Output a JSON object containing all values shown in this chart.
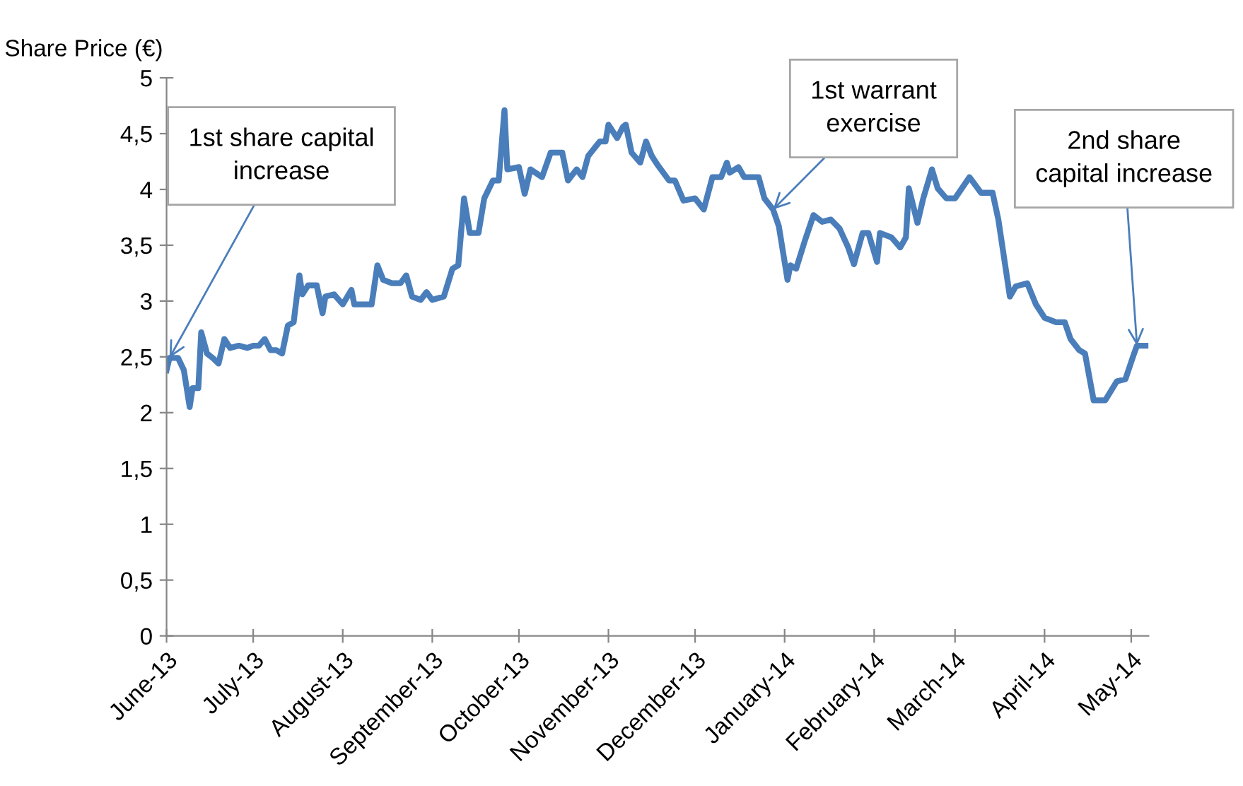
{
  "chart_data": {
    "type": "line",
    "ylabel": "Share Price (€)",
    "x": [
      "2013-06-01",
      "2013-06-02",
      "2013-06-05",
      "2013-06-07",
      "2013-06-09",
      "2013-06-10",
      "2013-06-12",
      "2013-06-13",
      "2013-06-15",
      "2013-06-17",
      "2013-06-19",
      "2013-06-21",
      "2013-06-23",
      "2013-06-26",
      "2013-06-29",
      "2013-07-01",
      "2013-07-03",
      "2013-07-05",
      "2013-07-07",
      "2013-07-09",
      "2013-07-11",
      "2013-07-13",
      "2013-07-15",
      "2013-07-17",
      "2013-07-18",
      "2013-07-20",
      "2013-07-23",
      "2013-07-25",
      "2013-07-26",
      "2013-07-29",
      "2013-08-01",
      "2013-08-04",
      "2013-08-05",
      "2013-08-08",
      "2013-08-11",
      "2013-08-13",
      "2013-08-15",
      "2013-08-18",
      "2013-08-21",
      "2013-08-23",
      "2013-08-25",
      "2013-08-28",
      "2013-08-30",
      "2013-09-01",
      "2013-09-05",
      "2013-09-08",
      "2013-09-10",
      "2013-09-12",
      "2013-09-14",
      "2013-09-17",
      "2013-09-19",
      "2013-09-22",
      "2013-09-24",
      "2013-09-26",
      "2013-09-27",
      "2013-10-01",
      "2013-10-03",
      "2013-10-05",
      "2013-10-09",
      "2013-10-12",
      "2013-10-16",
      "2013-10-18",
      "2013-10-21",
      "2013-10-23",
      "2013-10-25",
      "2013-10-29",
      "2013-10-31",
      "2013-11-01",
      "2013-11-04",
      "2013-11-06",
      "2013-11-07",
      "2013-11-09",
      "2013-11-12",
      "2013-11-14",
      "2013-11-16",
      "2013-11-18",
      "2013-11-22",
      "2013-11-24",
      "2013-11-27",
      "2013-12-01",
      "2013-12-04",
      "2013-12-07",
      "2013-12-10",
      "2013-12-12",
      "2013-12-13",
      "2013-12-16",
      "2013-12-18",
      "2013-12-23",
      "2013-12-25",
      "2013-12-28",
      "2013-12-30",
      "2014-01-02",
      "2014-01-03",
      "2014-01-05",
      "2014-01-08",
      "2014-01-11",
      "2014-01-14",
      "2014-01-17",
      "2014-01-20",
      "2014-01-23",
      "2014-01-25",
      "2014-01-28",
      "2014-01-30",
      "2014-02-02",
      "2014-02-03",
      "2014-02-07",
      "2014-02-10",
      "2014-02-12",
      "2014-02-13",
      "2014-02-16",
      "2014-02-18",
      "2014-02-21",
      "2014-02-23",
      "2014-02-26",
      "2014-03-01",
      "2014-03-06",
      "2014-03-10",
      "2014-03-14",
      "2014-03-16",
      "2014-03-20",
      "2014-03-22",
      "2014-03-26",
      "2014-03-29",
      "2014-04-01",
      "2014-04-05",
      "2014-04-08",
      "2014-04-10",
      "2014-04-13",
      "2014-04-15",
      "2014-04-18",
      "2014-04-22",
      "2014-04-26",
      "2014-04-29",
      "2014-05-02",
      "2014-05-03",
      "2014-05-06"
    ],
    "series": [
      {
        "color": "#4a7ebb",
        "values": [
          2.38,
          2.49,
          2.49,
          2.38,
          2.05,
          2.22,
          2.22,
          2.72,
          2.53,
          2.49,
          2.44,
          2.66,
          2.58,
          2.6,
          2.58,
          2.6,
          2.6,
          2.66,
          2.56,
          2.56,
          2.53,
          2.78,
          2.81,
          3.23,
          3.06,
          3.14,
          3.14,
          2.89,
          3.04,
          3.06,
          2.97,
          3.1,
          2.97,
          2.97,
          2.97,
          3.32,
          3.19,
          3.16,
          3.16,
          3.23,
          3.04,
          3.01,
          3.08,
          3.01,
          3.04,
          3.29,
          3.32,
          3.92,
          3.61,
          3.61,
          3.92,
          4.08,
          4.08,
          4.71,
          4.18,
          4.2,
          3.96,
          4.18,
          4.11,
          4.33,
          4.33,
          4.08,
          4.18,
          4.11,
          4.3,
          4.43,
          4.43,
          4.58,
          4.46,
          4.56,
          4.58,
          4.33,
          4.24,
          4.43,
          4.3,
          4.22,
          4.08,
          4.08,
          3.9,
          3.92,
          3.82,
          4.11,
          4.11,
          4.24,
          4.15,
          4.2,
          4.11,
          4.11,
          3.92,
          3.82,
          3.67,
          3.19,
          3.32,
          3.29,
          3.54,
          3.77,
          3.71,
          3.73,
          3.65,
          3.48,
          3.33,
          3.61,
          3.61,
          3.35,
          3.61,
          3.57,
          3.48,
          3.57,
          4.01,
          3.7,
          3.92,
          4.18,
          4.01,
          3.92,
          3.92,
          4.11,
          3.97,
          3.97,
          3.73,
          3.04,
          3.13,
          3.16,
          2.97,
          2.85,
          2.81,
          2.81,
          2.66,
          2.56,
          2.53,
          2.11,
          2.11,
          2.28,
          2.3,
          2.53,
          2.6,
          2.6
        ]
      }
    ],
    "xlim": [
      "2013-06-01",
      "2014-05-07"
    ],
    "xticks": [
      {
        "value": "2013-06-01",
        "label": "June-13"
      },
      {
        "value": "2013-07-01",
        "label": "July-13"
      },
      {
        "value": "2013-08-01",
        "label": "August-13"
      },
      {
        "value": "2013-09-01",
        "label": "September-13"
      },
      {
        "value": "2013-10-01",
        "label": "October-13"
      },
      {
        "value": "2013-11-01",
        "label": "November-13"
      },
      {
        "value": "2013-12-01",
        "label": "December-13"
      },
      {
        "value": "2014-01-01",
        "label": "January-14"
      },
      {
        "value": "2014-02-01",
        "label": "February-14"
      },
      {
        "value": "2014-03-01",
        "label": "March-14"
      },
      {
        "value": "2014-04-01",
        "label": "April-14"
      },
      {
        "value": "2014-05-01",
        "label": "May-14"
      }
    ],
    "ylim": [
      0,
      5
    ],
    "yticks": [
      0,
      {
        "value": 0.5,
        "label": "0,5"
      },
      1,
      {
        "value": 1.5,
        "label": "1,5"
      },
      2,
      {
        "value": 2.5,
        "label": "2,5"
      },
      3,
      {
        "value": 3.5,
        "label": "3,5"
      },
      4,
      {
        "value": 4.5,
        "label": "4,5"
      },
      5
    ],
    "grid": false,
    "legend": false,
    "marker": "none",
    "line_style": "solid",
    "annotations": [
      {
        "text": "1st share capital\nincrease",
        "x": "2013-06-02",
        "y": 2.49
      },
      {
        "text": "1st warrant\nexercise",
        "x": "2013-12-28",
        "y": 3.82
      },
      {
        "text": "2nd share\ncapital increase",
        "x": "2014-05-03",
        "y": 2.6
      }
    ]
  }
}
